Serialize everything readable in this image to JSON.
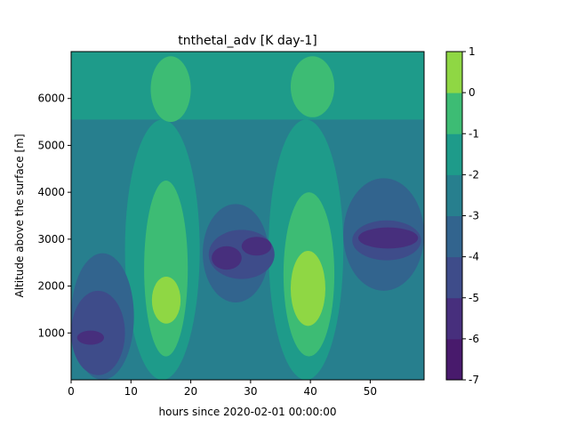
{
  "chart_data": {
    "type": "heatmap",
    "subtype": "filled-contour",
    "title": "tnthetal_adv [K day-1]",
    "xlabel": "hours since 2020-02-01 00:00:00",
    "ylabel": "Altitude above the surface [m]",
    "xlim": [
      0,
      59
    ],
    "ylim": [
      0,
      7000
    ],
    "xticks": [
      0,
      10,
      20,
      30,
      40,
      50
    ],
    "yticks": [
      1000,
      2000,
      3000,
      4000,
      5000,
      6000
    ],
    "grid": false,
    "colorbar": {
      "levels": [
        -7,
        -6,
        -5,
        -4,
        -3,
        -2,
        -1,
        0,
        1
      ],
      "tick_labels": [
        "-7",
        "-6",
        "-5",
        "-4",
        "-3",
        "-2",
        "-1",
        "0",
        "1"
      ],
      "colors": [
        "#481a6c",
        "#472f7d",
        "#3e4c8a",
        "#32648e",
        "#277f8e",
        "#1e9b8a",
        "#3dbc74",
        "#8fd744",
        "#dde318"
      ]
    },
    "regions": [
      {
        "level_band": [
          -3,
          -2
        ],
        "x": [
          0,
          59
        ],
        "y": [
          0,
          7000
        ],
        "note": "background"
      },
      {
        "level_band": [
          -2,
          -1
        ],
        "x": [
          0,
          59
        ],
        "y": [
          5550,
          7000
        ],
        "note": "upper layer"
      },
      {
        "level_band": [
          -2,
          -1
        ],
        "x": [
          9,
          21.5
        ],
        "y": [
          0,
          5550
        ],
        "note": "column near 15 h"
      },
      {
        "level_band": [
          -2,
          -1
        ],
        "x": [
          33,
          45.5
        ],
        "y": [
          0,
          5550
        ],
        "note": "column near 40 h"
      },
      {
        "level_band": [
          -1,
          0
        ],
        "x": [
          13.3,
          20
        ],
        "y": [
          5500,
          6900
        ],
        "note": "cap near 16 h"
      },
      {
        "level_band": [
          -1,
          0
        ],
        "x": [
          36.7,
          44
        ],
        "y": [
          5600,
          6900
        ],
        "note": "cap near 40 h"
      },
      {
        "level_band": [
          -1,
          0
        ],
        "x": [
          12.2,
          19.5
        ],
        "y": [
          500,
          4250
        ],
        "note": "column near 16 h"
      },
      {
        "level_band": [
          -1,
          0
        ],
        "x": [
          35.5,
          44
        ],
        "y": [
          500,
          4000
        ],
        "note": "column near 40 h"
      },
      {
        "level_band": [
          0,
          1
        ],
        "x": [
          13.5,
          18.3
        ],
        "y": [
          1200,
          2200
        ],
        "note": "core near 16 h"
      },
      {
        "level_band": [
          0,
          1
        ],
        "x": [
          36.7,
          42.5
        ],
        "y": [
          1150,
          2750
        ],
        "note": "core near 40 h"
      },
      {
        "level_band": [
          -4,
          -3
        ],
        "x": [
          0,
          10.5
        ],
        "y": [
          0,
          2700
        ],
        "note": "lower left"
      },
      {
        "level_band": [
          -4,
          -3
        ],
        "x": [
          22,
          33
        ],
        "y": [
          1650,
          3750
        ],
        "note": "mid 22-33 h"
      },
      {
        "level_band": [
          -4,
          -3
        ],
        "x": [
          45.5,
          59
        ],
        "y": [
          1900,
          4300
        ],
        "note": "right side"
      },
      {
        "level_band": [
          -5,
          -4
        ],
        "x": [
          0,
          9
        ],
        "y": [
          100,
          1900
        ],
        "note": "lower left"
      },
      {
        "level_band": [
          -5,
          -4
        ],
        "x": [
          23,
          34
        ],
        "y": [
          2150,
          3200
        ],
        "note": "mid 22-33 h"
      },
      {
        "level_band": [
          -5,
          -4
        ],
        "x": [
          47,
          58.5
        ],
        "y": [
          2550,
          3400
        ],
        "note": "right side"
      },
      {
        "level_band": [
          -6,
          -5
        ],
        "x": [
          1,
          5.5
        ],
        "y": [
          750,
          1050
        ],
        "note": "low"
      },
      {
        "level_band": [
          -6,
          -5
        ],
        "x": [
          23.5,
          28.5
        ],
        "y": [
          2350,
          2850
        ],
        "note": "mid"
      },
      {
        "level_band": [
          -6,
          -5
        ],
        "x": [
          28.5,
          33.5
        ],
        "y": [
          2650,
          3050
        ],
        "note": "mid"
      },
      {
        "level_band": [
          -6,
          -5
        ],
        "x": [
          48,
          58
        ],
        "y": [
          2800,
          3250
        ],
        "note": "right"
      }
    ]
  }
}
